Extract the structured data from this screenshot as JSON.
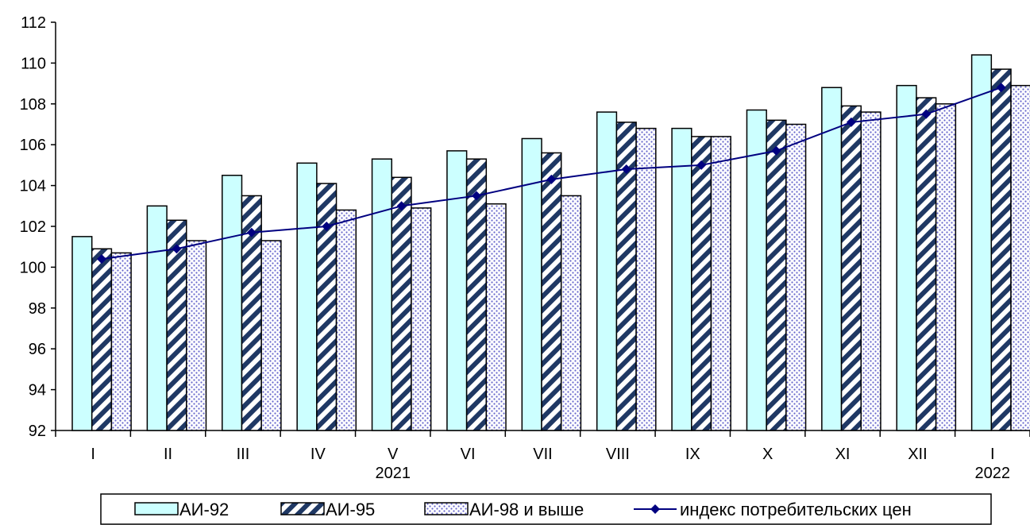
{
  "chart_data": {
    "type": "bar",
    "categories": [
      "I",
      "II",
      "III",
      "IV",
      "V",
      "VI",
      "VII",
      "VIII",
      "IX",
      "X",
      "XI",
      "XII",
      "I"
    ],
    "year_labels": [
      {
        "category_index": 4,
        "label": "2021"
      },
      {
        "category_index": 12,
        "label": "2022"
      }
    ],
    "ylim": [
      92,
      112
    ],
    "yticks": [
      92,
      94,
      96,
      98,
      100,
      102,
      104,
      106,
      108,
      110,
      112
    ],
    "grid": false,
    "legend_position": "bottom",
    "series": [
      {
        "name": "АИ-92",
        "kind": "bar",
        "color": "#ccffff",
        "pattern": "solid",
        "values": [
          101.5,
          103.0,
          104.5,
          105.1,
          105.3,
          105.7,
          106.3,
          107.6,
          106.8,
          107.7,
          108.8,
          108.9,
          110.4
        ]
      },
      {
        "name": "АИ-95",
        "kind": "bar",
        "color": "#1f3864",
        "pattern": "diagonal-stripes",
        "values": [
          100.9,
          102.3,
          103.5,
          104.1,
          104.4,
          105.3,
          105.6,
          107.1,
          106.4,
          107.2,
          107.9,
          108.3,
          109.7
        ]
      },
      {
        "name": "АИ-98 и выше",
        "kind": "bar",
        "color": "#6666cc",
        "pattern": "dots",
        "values": [
          100.7,
          101.3,
          101.3,
          102.8,
          102.9,
          103.1,
          103.5,
          106.8,
          106.4,
          107.0,
          107.6,
          108.0,
          108.9
        ]
      },
      {
        "name": "индекс потребительских цен",
        "kind": "line",
        "color": "#000080",
        "marker": "diamond",
        "values": [
          100.4,
          100.9,
          101.7,
          102.0,
          103.0,
          103.5,
          104.3,
          104.8,
          105.0,
          105.7,
          107.1,
          107.5,
          108.8
        ]
      }
    ]
  }
}
